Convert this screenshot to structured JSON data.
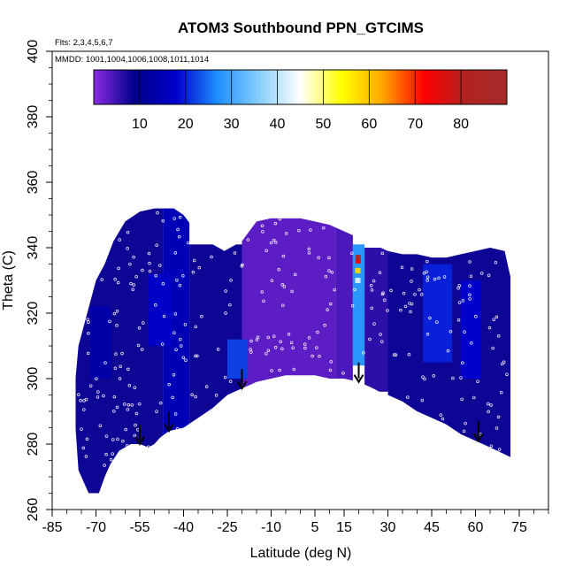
{
  "chart_data": {
    "type": "heatmap",
    "title": "ATOM3 Southbound PPN_GTCIMS",
    "subtitle_flights": "Flts: 2,3,4,5,6,7",
    "subtitle_dates": "MMDD: 1001,1004,1006,1008,1011,1014",
    "xlabel": "Latitude (deg N)",
    "ylabel": "Theta (C)",
    "xlim": [
      -85,
      85
    ],
    "ylim": [
      260,
      400
    ],
    "x_ticks": [
      "-85",
      "-70",
      "-55",
      "-40",
      "-25",
      "-10",
      "5",
      "15",
      "30",
      "45",
      "60",
      "75"
    ],
    "y_ticks": [
      "260",
      "280",
      "300",
      "320",
      "340",
      "360",
      "380",
      "400"
    ],
    "colorbar": {
      "range": [
        0,
        90
      ],
      "ticks": [
        "10",
        "20",
        "30",
        "40",
        "50",
        "60",
        "70",
        "80"
      ],
      "colors": [
        "#8a2be2",
        "#00008b",
        "#0000cd",
        "#1e90ff",
        "#87cefa",
        "#ffffff",
        "#ffff00",
        "#ffa500",
        "#ff0000",
        "#b22222",
        "#a52a2a"
      ]
    },
    "surface_arrows_lat": [
      -55,
      -45,
      -20,
      20,
      61
    ],
    "upper_boundary": [
      [
        -76,
        310
      ],
      [
        -73,
        320
      ],
      [
        -70,
        330
      ],
      [
        -67,
        335
      ],
      [
        -64,
        342
      ],
      [
        -60,
        348
      ],
      [
        -55,
        351
      ],
      [
        -50,
        352
      ],
      [
        -45,
        353
      ],
      [
        -40,
        350
      ],
      [
        -35,
        344
      ],
      [
        -30,
        341
      ],
      [
        -26,
        339
      ],
      [
        -20,
        342
      ],
      [
        -15,
        348
      ],
      [
        -10,
        349
      ],
      [
        -5,
        349
      ],
      [
        0,
        349
      ],
      [
        5,
        348
      ],
      [
        10,
        347
      ],
      [
        15,
        345
      ],
      [
        20,
        343
      ],
      [
        25,
        341
      ],
      [
        30,
        339
      ],
      [
        35,
        338
      ],
      [
        40,
        338
      ],
      [
        45,
        337
      ],
      [
        50,
        337
      ],
      [
        55,
        338
      ],
      [
        60,
        339
      ],
      [
        65,
        340
      ],
      [
        70,
        339
      ],
      [
        72,
        331
      ]
    ],
    "lower_boundary": [
      [
        72,
        276
      ],
      [
        65,
        279
      ],
      [
        60,
        281
      ],
      [
        55,
        283
      ],
      [
        50,
        286
      ],
      [
        45,
        288
      ],
      [
        40,
        290
      ],
      [
        35,
        293
      ],
      [
        30,
        295
      ],
      [
        27,
        296
      ],
      [
        25,
        297
      ],
      [
        20,
        299
      ],
      [
        15,
        300
      ],
      [
        10,
        300
      ],
      [
        5,
        301
      ],
      [
        0,
        301
      ],
      [
        -5,
        301
      ],
      [
        -10,
        300
      ],
      [
        -15,
        299
      ],
      [
        -20,
        297
      ],
      [
        -25,
        295
      ],
      [
        -30,
        291
      ],
      [
        -35,
        288
      ],
      [
        -40,
        285
      ],
      [
        -45,
        284
      ],
      [
        -48,
        282
      ],
      [
        -50,
        280
      ],
      [
        -52,
        279
      ],
      [
        -55,
        280
      ],
      [
        -58,
        280
      ],
      [
        -62,
        278
      ],
      [
        -65,
        274
      ],
      [
        -67,
        270
      ],
      [
        -69,
        265
      ],
      [
        -71,
        262
      ],
      [
        -72,
        264
      ],
      [
        -74,
        268
      ],
      [
        -76,
        272
      ],
      [
        -77,
        285
      ],
      [
        -77,
        300
      ]
    ],
    "regions": [
      {
        "lat": [
          -77,
          -47
        ],
        "theta": [
          265,
          352
        ],
        "value": 8
      },
      {
        "lat": [
          -47,
          -38
        ],
        "theta": [
          282,
          352
        ],
        "value": 15
      },
      {
        "lat": [
          -38,
          -20
        ],
        "theta": [
          285,
          341
        ],
        "value": 8
      },
      {
        "lat": [
          -20,
          12
        ],
        "theta": [
          297,
          349
        ],
        "value": 3
      },
      {
        "lat": [
          -25,
          -18
        ],
        "theta": [
          300,
          312
        ],
        "value": 22
      },
      {
        "lat": [
          12,
          18
        ],
        "theta": [
          298,
          348
        ],
        "value": 4
      },
      {
        "lat": [
          18,
          22
        ],
        "theta": [
          304,
          341
        ],
        "value": 28
      },
      {
        "lat": [
          22,
          30
        ],
        "theta": [
          296,
          340
        ],
        "value": 6
      },
      {
        "lat": [
          30,
          72
        ],
        "theta": [
          276,
          340
        ],
        "value": 8
      },
      {
        "lat": [
          42,
          52
        ],
        "theta": [
          305,
          335
        ],
        "value": 20
      },
      {
        "lat": [
          55,
          62
        ],
        "theta": [
          300,
          330
        ],
        "value": 18
      },
      {
        "lat": [
          -72,
          -65
        ],
        "theta": [
          300,
          322
        ],
        "value": 13
      },
      {
        "lat": [
          -52,
          -44
        ],
        "theta": [
          310,
          332
        ],
        "value": 17
      }
    ],
    "hotspot": [
      {
        "lat": 19.7,
        "theta": 330,
        "value": 42
      },
      {
        "lat": 19.7,
        "theta": 333,
        "value": 58
      },
      {
        "lat": 19.8,
        "theta": 336,
        "value": 72
      },
      {
        "lat": 19.8,
        "theta": 337,
        "value": 85
      }
    ]
  }
}
